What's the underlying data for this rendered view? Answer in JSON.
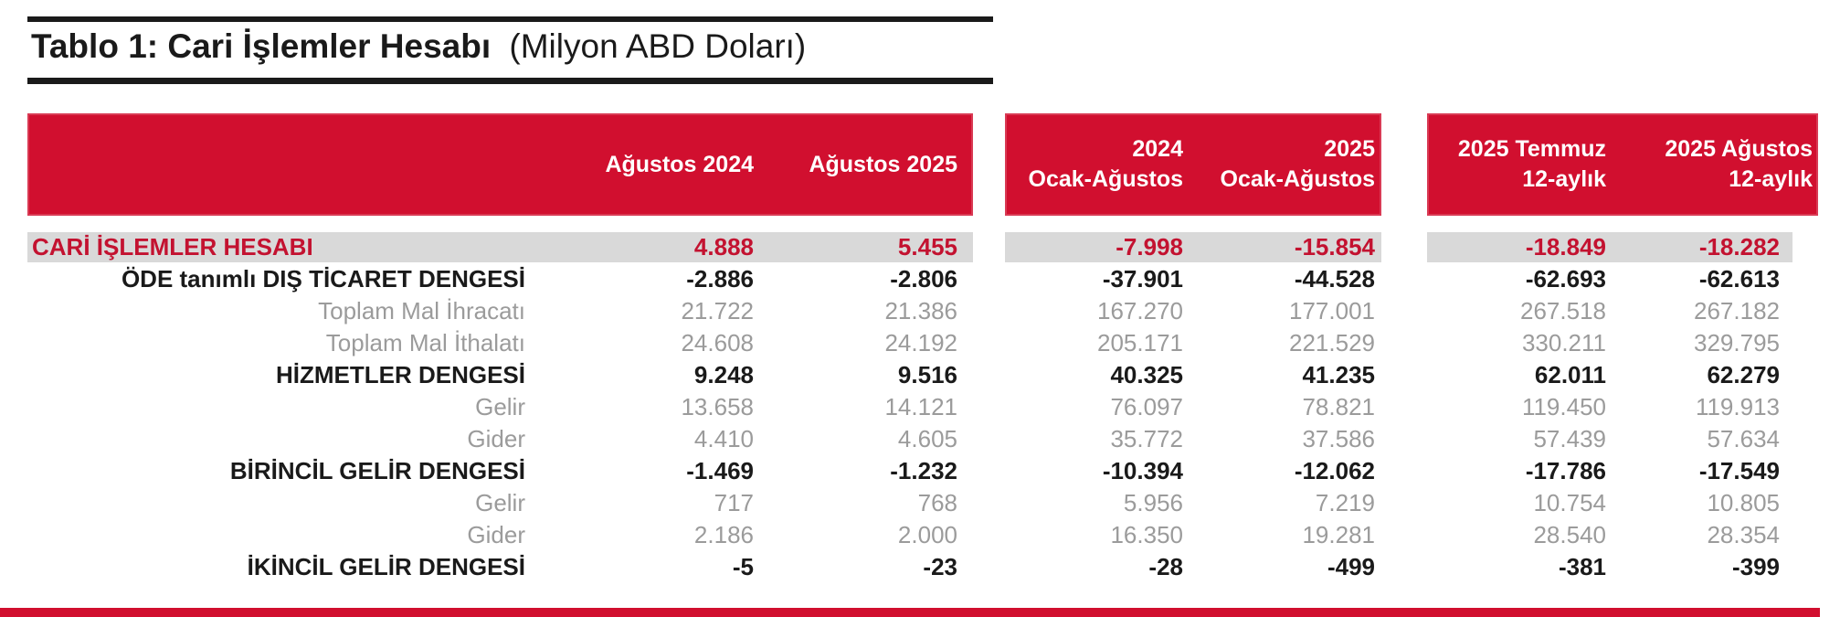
{
  "title": {
    "bold": "Tablo 1: Cari İşlemler Hesabı",
    "normal": "(Milyon ABD Doları)"
  },
  "header": {
    "cols": [
      {
        "lines": [
          "Ağustos 2024"
        ]
      },
      {
        "lines": [
          "Ağustos 2025"
        ]
      },
      {
        "lines": [
          "2024",
          "Ocak-Ağustos"
        ]
      },
      {
        "lines": [
          "2025",
          "Ocak-Ağustos"
        ]
      },
      {
        "lines": [
          "2025 Temmuz",
          "12-aylık"
        ]
      },
      {
        "lines": [
          "2025 Ağustos",
          "12-aylık"
        ]
      }
    ]
  },
  "rows": [
    {
      "label": "CARİ İŞLEMLER HESABI",
      "style": "highlight",
      "values": [
        "4.888",
        "5.455",
        "-7.998",
        "-15.854",
        "-18.849",
        "-18.282"
      ]
    },
    {
      "label": "ÖDE tanımlı DIŞ TİCARET DENGESİ",
      "style": "bold",
      "values": [
        "-2.886",
        "-2.806",
        "-37.901",
        "-44.528",
        "-62.693",
        "-62.613"
      ]
    },
    {
      "label": "Toplam Mal İhracatı",
      "style": "sub",
      "values": [
        "21.722",
        "21.386",
        "167.270",
        "177.001",
        "267.518",
        "267.182"
      ]
    },
    {
      "label": "Toplam Mal İthalatı",
      "style": "sub",
      "values": [
        "24.608",
        "24.192",
        "205.171",
        "221.529",
        "330.211",
        "329.795"
      ]
    },
    {
      "label": "HİZMETLER DENGESİ",
      "style": "bold",
      "values": [
        "9.248",
        "9.516",
        "40.325",
        "41.235",
        "62.011",
        "62.279"
      ]
    },
    {
      "label": "Gelir",
      "style": "sub",
      "values": [
        "13.658",
        "14.121",
        "76.097",
        "78.821",
        "119.450",
        "119.913"
      ]
    },
    {
      "label": "Gider",
      "style": "sub",
      "values": [
        "4.410",
        "4.605",
        "35.772",
        "37.586",
        "57.439",
        "57.634"
      ]
    },
    {
      "label": "BİRİNCİL GELİR DENGESİ",
      "style": "bold",
      "values": [
        "-1.469",
        "-1.232",
        "-10.394",
        "-12.062",
        "-17.786",
        "-17.549"
      ]
    },
    {
      "label": "Gelir",
      "style": "sub",
      "values": [
        "717",
        "768",
        "5.956",
        "7.219",
        "10.754",
        "10.805"
      ]
    },
    {
      "label": "Gider",
      "style": "sub",
      "values": [
        "2.186",
        "2.000",
        "16.350",
        "19.281",
        "28.540",
        "28.354"
      ]
    },
    {
      "label": "İKİNCİL GELİR DENGESİ",
      "style": "bold",
      "values": [
        "-5",
        "-23",
        "-28",
        "-499",
        "-381",
        "-399"
      ]
    }
  ],
  "colors": {
    "header_red": "#d10f2f",
    "highlight_bg": "#d9d9d9",
    "highlight_text": "#c31230",
    "sub_text": "#9b9b9b",
    "ink": "#1a1a1a"
  }
}
